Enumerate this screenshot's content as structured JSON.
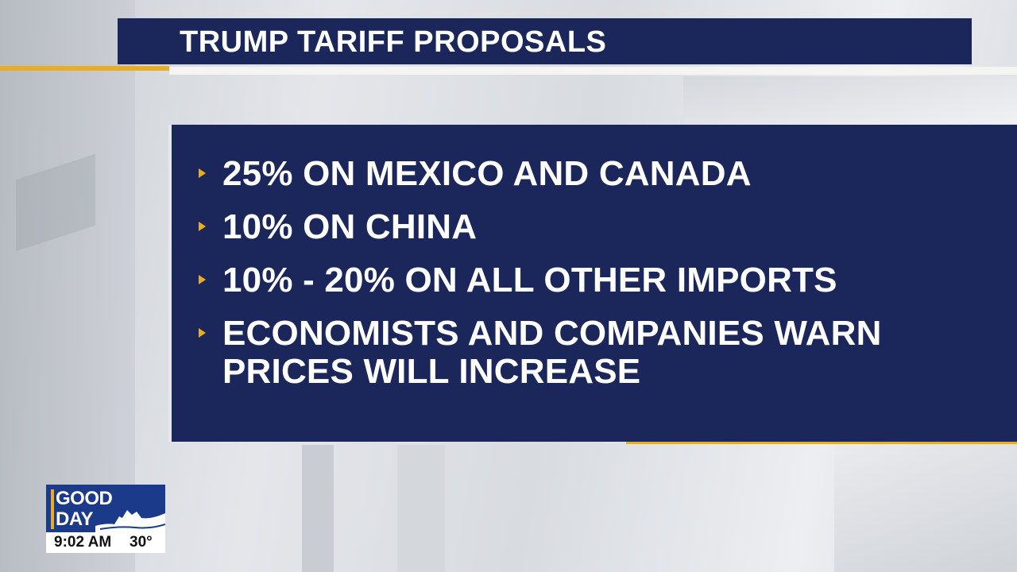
{
  "header": {
    "title": "TRUMP TARIFF PROPOSALS"
  },
  "bullets": [
    "25% ON MEXICO AND CANADA",
    "10% ON CHINA",
    "10% - 20% ON ALL OTHER IMPORTS",
    "ECONOMISTS AND COMPANIES WARN PRICES WILL INCREASE"
  ],
  "bug": {
    "line1": "GOOD",
    "line2": "DAY",
    "time": "9:02 AM",
    "temperature": "30°"
  },
  "colors": {
    "navy": "#1b275a",
    "gold": "#e8ad22",
    "logo_blue": "#1b3a8a"
  },
  "icons": {
    "bullet": "gold-triangle-bullet-icon",
    "logo_art": "skyline-icon"
  }
}
